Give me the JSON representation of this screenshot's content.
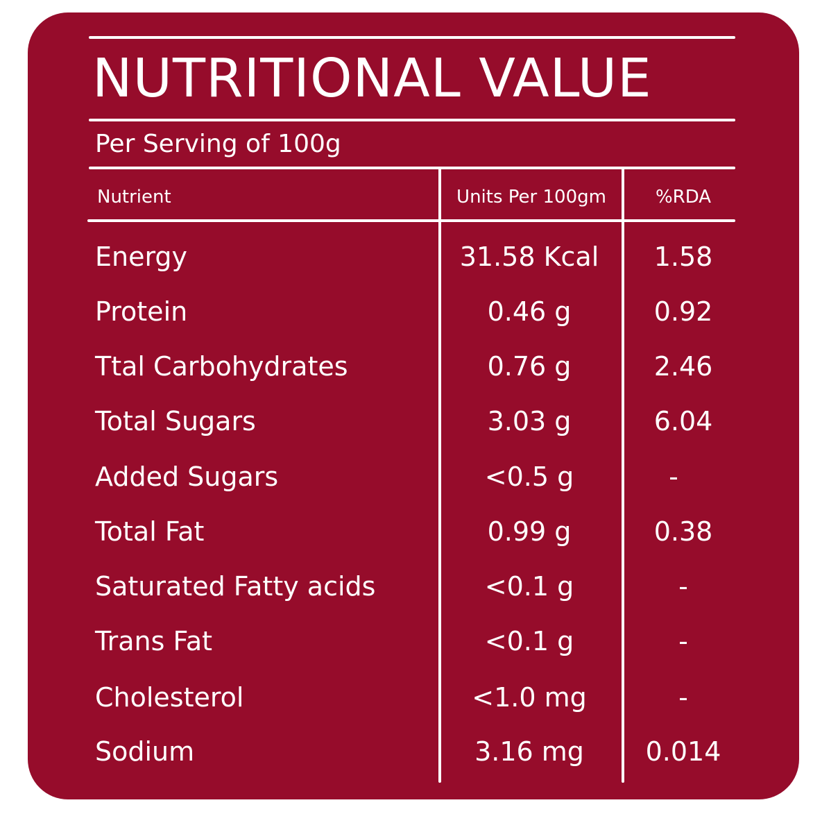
{
  "label": {
    "title": "NUTRITIONAL VALUE",
    "subtitle": "Per Serving of 100g",
    "columns": {
      "nutrient": "Nutrient",
      "units": "Units Per 100gm",
      "rda": "%RDA"
    },
    "rows": [
      {
        "nutrient": "Energy",
        "units": "31.58 Kcal",
        "rda": "1.58"
      },
      {
        "nutrient": "Protein",
        "units": "0.46 g",
        "rda": "0.92"
      },
      {
        "nutrient": "Ttal Carbohydrates",
        "units": "0.76 g",
        "rda": "2.46"
      },
      {
        "nutrient": "Total Sugars",
        "units": "3.03 g",
        "rda": "6.04"
      },
      {
        "nutrient": "Added Sugars",
        "units": "<0.5 g",
        "rda": "-"
      },
      {
        "nutrient": "Total Fat",
        "units": "0.99 g",
        "rda": "0.38"
      },
      {
        "nutrient": "Saturated Fatty acids",
        "units": "<0.1 g",
        "rda": "-"
      },
      {
        "nutrient": "Trans Fat",
        "units": "<0.1 g",
        "rda": "-"
      },
      {
        "nutrient": "Cholesterol",
        "units": "<1.0 mg",
        "rda": "-"
      },
      {
        "nutrient": "Sodium",
        "units": "3.16 mg",
        "rda": "0.014"
      }
    ]
  },
  "colors": {
    "background": "#960c2b",
    "text": "#ffffff",
    "rules": "#ffffff"
  }
}
